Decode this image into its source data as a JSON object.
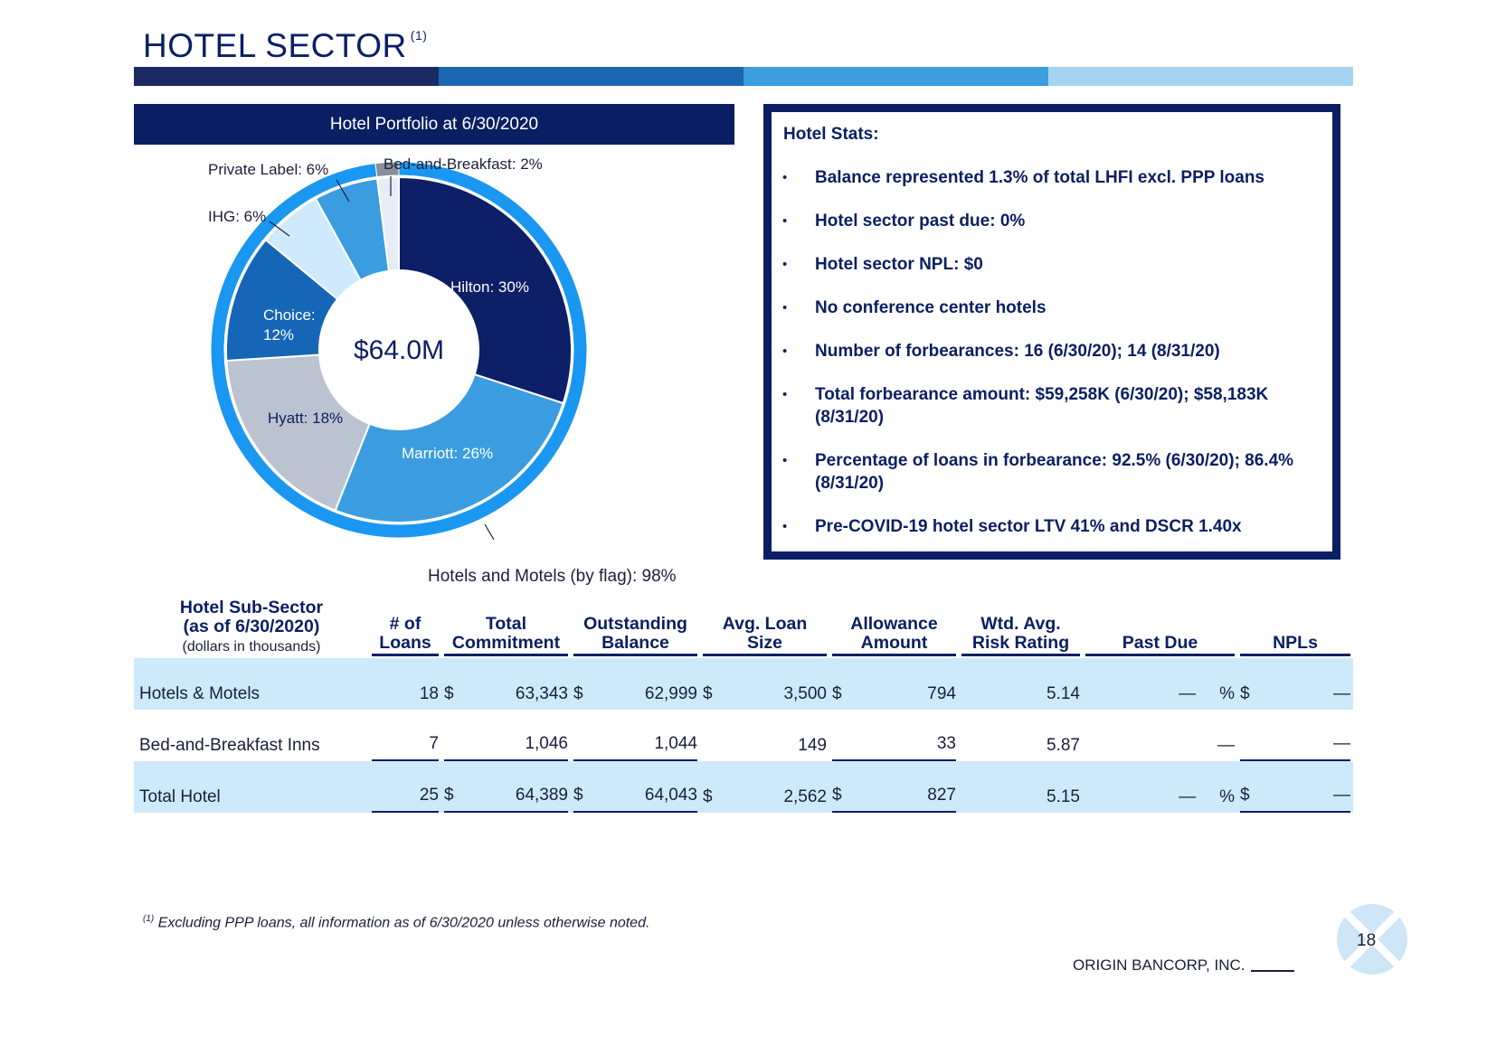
{
  "title": "HOTEL SECTOR",
  "title_footnote_mark": "(1)",
  "portfolio_header": "Hotel Portfolio at 6/30/2020",
  "chart_data": {
    "type": "pie",
    "title": "Hotel Portfolio at 6/30/2020",
    "center_label": "$64.0M",
    "slices": [
      {
        "label": "Hilton: 30%",
        "name": "Hilton",
        "value": 30,
        "color": "#0d1f66"
      },
      {
        "label": "Marriott: 26%",
        "name": "Marriott",
        "value": 26,
        "color": "#3b9de0"
      },
      {
        "label": "Hyatt: 18%",
        "name": "Hyatt",
        "value": 18,
        "color": "#bcc3d0"
      },
      {
        "label": "Choice: 12%",
        "label_lines": [
          "Choice:",
          "12%"
        ],
        "name": "Choice",
        "value": 12,
        "color": "#1566b6"
      },
      {
        "label": "IHG: 6%",
        "name": "IHG",
        "value": 6,
        "color": "#cfeafc"
      },
      {
        "label": "Private Label: 6%",
        "name": "Private Label",
        "value": 6,
        "color": "#3b9de0"
      },
      {
        "label": "Bed-and-Breakfast: 2%",
        "name": "Bed-and-Breakfast",
        "value": 2,
        "color": "#e6edf5"
      }
    ],
    "outer_ring": [
      {
        "label": "Hotels and Motels (by flag): 98%",
        "value": 98,
        "color": "#1a97f0"
      },
      {
        "label": "Bed-and-Breakfast: 2%",
        "value": 2,
        "color": "#8a8f99"
      }
    ]
  },
  "stats": {
    "title": "Hotel Stats:",
    "items": [
      "Balance represented 1.3% of total LHFI excl. PPP loans",
      "Hotel sector past due: 0%",
      "Hotel sector NPL: $0",
      "No conference center hotels",
      "Number of forbearances: 16 (6/30/20); 14 (8/31/20)",
      "Total forbearance amount: $59,258K (6/30/20); $58,183K (8/31/20)",
      "Percentage of loans in forbearance: 92.5% (6/30/20); 86.4% (8/31/20)",
      "Pre-COVID-19 hotel sector LTV 41% and DSCR 1.40x"
    ]
  },
  "table": {
    "headers": {
      "subsector": "Hotel Sub-Sector (as of 6/30/2020)",
      "subsector_note": "(dollars in thousands)",
      "loans": "# of Loans",
      "commitment": "Total Commitment",
      "balance": "Outstanding Balance",
      "avg": "Avg. Loan Size",
      "allowance": "Allowance Amount",
      "risk": "Wtd. Avg. Risk Rating",
      "pastdue": "Past Due",
      "npls": "NPLs"
    },
    "rows": [
      {
        "label": "Hotels & Motels",
        "loans": "18",
        "commitment": "63,343",
        "balance": "62,999",
        "avg": "3,500",
        "allowance": "794",
        "risk": "5.14",
        "pastdue": "—",
        "npls": "—"
      },
      {
        "label": "Bed-and-Breakfast Inns",
        "loans": "7",
        "commitment": "1,046",
        "balance": "1,044",
        "avg": "149",
        "allowance": "33",
        "risk": "5.87",
        "pastdue": "—",
        "npls": "—"
      },
      {
        "label": "Total Hotel",
        "loans": "25",
        "commitment": "64,389",
        "balance": "64,043",
        "avg": "2,562",
        "allowance": "827",
        "risk": "5.15",
        "pastdue": "—",
        "npls": "—"
      }
    ],
    "currency": "$",
    "percent": "%"
  },
  "footnote_mark": "(1)",
  "footnote": "Excluding PPP loans, all information as of 6/30/2020 unless otherwise noted.",
  "company": "ORIGIN BANCORP, INC.",
  "page_number": "18",
  "colors": {
    "navy": "#0a1f63",
    "light_blue": "#cdeafb"
  }
}
